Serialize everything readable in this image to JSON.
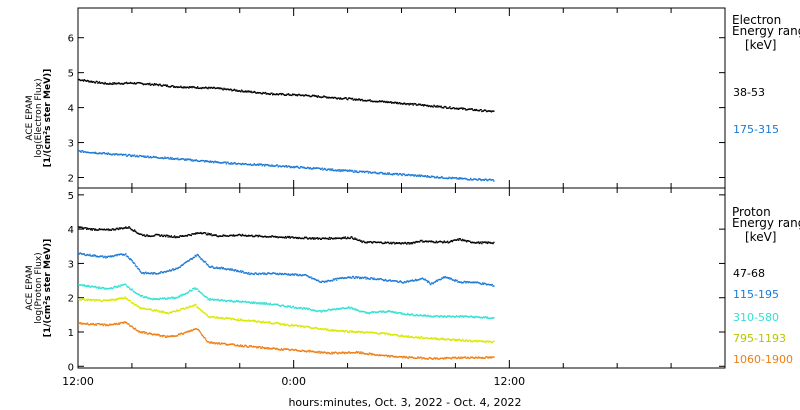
{
  "x_axis": {
    "title": "hours:minutes, Oct.  3, 2022 - Oct.  4, 2022",
    "range_hours": [
      0,
      36
    ],
    "major_ticks": [
      {
        "hour": 0,
        "label": "12:00"
      },
      {
        "hour": 12,
        "label": "0:00"
      },
      {
        "hour": 24,
        "label": "12:00"
      }
    ],
    "minor_tick_step_hours": 3
  },
  "chart_data": [
    {
      "type": "scatter",
      "panel": "electron",
      "ylabel_lines": [
        "ACE EPAM",
        "log(Electron Flux)",
        "[1/(cm²s ster MeV)]"
      ],
      "ylim": [
        1.7,
        6.85
      ],
      "yticks": [
        2,
        3,
        4,
        5,
        6
      ],
      "data_end_hour": 23.1,
      "legend_title": [
        "Electron",
        "Energy ranges"
      ],
      "legend_unit": "[keV]",
      "series": [
        {
          "name": "38-53",
          "color": "#000000",
          "x": [
            0,
            0.6,
            1.6,
            3,
            4.4,
            5.3,
            7.6,
            9.5,
            11,
            12.5,
            13.7,
            15,
            18,
            21,
            23.1
          ],
          "y": [
            4.8,
            4.75,
            4.68,
            4.7,
            4.65,
            4.6,
            4.55,
            4.45,
            4.38,
            4.35,
            4.3,
            4.25,
            4.12,
            3.98,
            3.88
          ]
        },
        {
          "name": "175-315",
          "color": "#1a79d6",
          "x": [
            0,
            2.2,
            5,
            8,
            11.4,
            14.6,
            18,
            21,
            23.1
          ],
          "y": [
            2.75,
            2.65,
            2.55,
            2.42,
            2.32,
            2.2,
            2.08,
            1.97,
            1.92
          ]
        }
      ]
    },
    {
      "type": "scatter",
      "panel": "proton",
      "ylabel_lines": [
        "ACE EPAM",
        "log(Proton Flux)",
        "[1/(cm²s ster MeV)]"
      ],
      "ylim": [
        -0.05,
        5.2
      ],
      "yticks": [
        0,
        1,
        2,
        3,
        4,
        5
      ],
      "data_end_hour": 23.1,
      "legend_title": [
        "Proton",
        "Energy ranges"
      ],
      "legend_unit": "[keV]",
      "series": [
        {
          "name": "47-68",
          "color": "#000000",
          "x": [
            0,
            0.6,
            1.6,
            2.8,
            3.4,
            3.8,
            4.4,
            5.5,
            6.4,
            6.8,
            7.2,
            7.8,
            9,
            10.5,
            12,
            13.5,
            15.2,
            15.8,
            17,
            18.4,
            19,
            19.6,
            20.6,
            21.2,
            21.7,
            22.3,
            23.1
          ],
          "y": [
            4.05,
            4.0,
            3.97,
            4.05,
            3.85,
            3.8,
            3.82,
            3.77,
            3.85,
            3.9,
            3.85,
            3.8,
            3.82,
            3.78,
            3.75,
            3.72,
            3.75,
            3.62,
            3.6,
            3.58,
            3.65,
            3.63,
            3.62,
            3.7,
            3.63,
            3.6,
            3.6
          ]
        },
        {
          "name": "115-195",
          "color": "#1a79d6",
          "x": [
            0,
            1.5,
            2.6,
            3.1,
            3.5,
            4.3,
            5.5,
            6.2,
            6.6,
            7.3,
            8.5,
            9.5,
            11,
            12.6,
            13.5,
            15,
            16.5,
            17.2,
            18.1,
            19.2,
            19.6,
            20.4,
            21.2,
            22,
            23.1
          ],
          "y": [
            3.28,
            3.18,
            3.27,
            3.0,
            2.72,
            2.7,
            2.85,
            3.1,
            3.25,
            2.9,
            2.82,
            2.7,
            2.7,
            2.65,
            2.45,
            2.6,
            2.55,
            2.5,
            2.45,
            2.55,
            2.4,
            2.6,
            2.45,
            2.45,
            2.35
          ]
        },
        {
          "name": "310-580",
          "color": "#33e0d2",
          "x": [
            0,
            1.6,
            2.6,
            3.4,
            4.2,
            5.5,
            6.5,
            7.2,
            8.5,
            10.5,
            12.3,
            13.5,
            15,
            16,
            17.2,
            18.5,
            20,
            21.5,
            23.1
          ],
          "y": [
            2.38,
            2.25,
            2.38,
            2.05,
            1.95,
            2.0,
            2.28,
            1.95,
            1.9,
            1.82,
            1.7,
            1.6,
            1.72,
            1.55,
            1.6,
            1.5,
            1.45,
            1.45,
            1.4
          ]
        },
        {
          "name": "795-1193",
          "color": "#d8e800",
          "x": [
            0,
            1.5,
            2.6,
            3.4,
            5,
            6.5,
            7.2,
            9,
            11,
            12.5,
            14,
            15.5,
            17,
            18.5,
            20,
            21.5,
            23.1
          ],
          "y": [
            1.95,
            1.9,
            2.0,
            1.7,
            1.55,
            1.78,
            1.45,
            1.35,
            1.25,
            1.15,
            1.05,
            1.0,
            0.95,
            0.85,
            0.8,
            0.75,
            0.7
          ]
        },
        {
          "name": "1060-1900",
          "color": "#f07d10",
          "x": [
            0,
            1.6,
            2.6,
            3.4,
            5,
            5.8,
            6.6,
            7.2,
            9,
            11,
            12.5,
            14,
            15.5,
            17,
            18.5,
            20,
            21.5,
            23.1
          ],
          "y": [
            1.25,
            1.2,
            1.27,
            1.0,
            0.85,
            0.95,
            1.1,
            0.7,
            0.6,
            0.5,
            0.45,
            0.38,
            0.4,
            0.3,
            0.25,
            0.22,
            0.25,
            0.25
          ]
        }
      ]
    }
  ]
}
